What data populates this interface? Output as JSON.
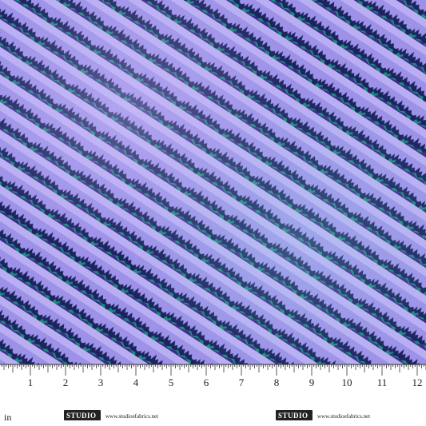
{
  "ruler": {
    "unit": "in",
    "numbers": [
      1,
      2,
      3,
      4,
      5,
      6,
      7,
      8,
      9,
      10,
      11,
      12
    ]
  },
  "branding": [
    {
      "logo": "STUDIO",
      "url": "www.studioefabrics.net"
    },
    {
      "logo": "STUDIO",
      "url": "www.studioefabrics.net"
    }
  ]
}
